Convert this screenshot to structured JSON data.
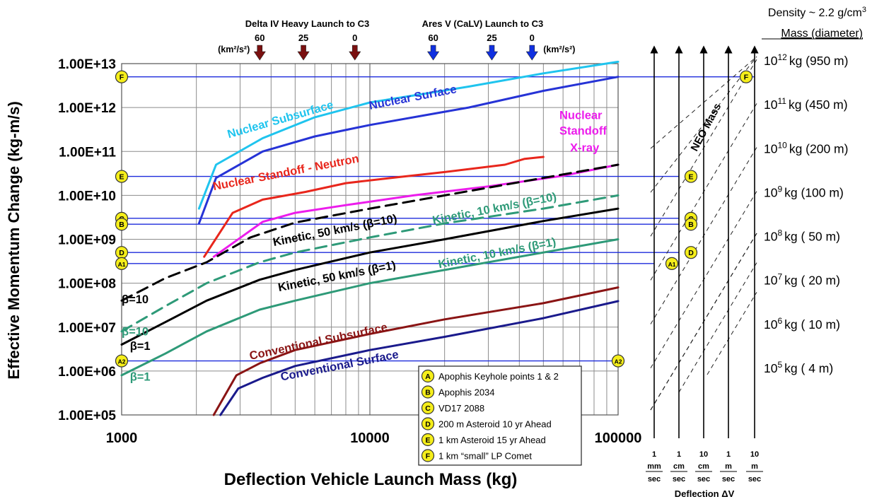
{
  "chart_data": {
    "type": "line",
    "xscale": "log",
    "yscale": "log",
    "xlim": [
      1000,
      100000
    ],
    "ylim": [
      100000,
      10000000000000
    ],
    "grid": true,
    "xlabel": "Deflection Vehicle Launch Mass (kg)",
    "ylabel": "Effective Momentum Change (kg-m/s)",
    "xticks": [
      {
        "v": 1000,
        "label": "1000"
      },
      {
        "v": 10000,
        "label": "10000"
      },
      {
        "v": 100000,
        "label": "100000"
      }
    ],
    "yticks": [
      {
        "v": 100000.0,
        "label": "1.00E+05"
      },
      {
        "v": 1000000.0,
        "label": "1.00E+06"
      },
      {
        "v": 10000000.0,
        "label": "1.00E+07"
      },
      {
        "v": 100000000.0,
        "label": "1.00E+08"
      },
      {
        "v": 1000000000.0,
        "label": "1.00E+09"
      },
      {
        "v": 10000000000.0,
        "label": "1.00E+10"
      },
      {
        "v": 100000000000.0,
        "label": "1.00E+11"
      },
      {
        "v": 1000000000000.0,
        "label": "1.00E+12"
      },
      {
        "v": 10000000000000.0,
        "label": "1.00E+13"
      }
    ],
    "series": [
      {
        "name": "Nuclear Subsurface",
        "color": "#1fc4ee",
        "dash": false,
        "x": [
          2050,
          2400,
          3700,
          6000,
          10000,
          25000,
          50000,
          100000
        ],
        "y": [
          5000000000.0,
          50000000000.0,
          200000000000.0,
          600000000000.0,
          1300000000000.0,
          3000000000000.0,
          6000000000000.0,
          11000000000000.0
        ]
      },
      {
        "name": "Nuclear Surface",
        "color": "#2633d6",
        "dash": false,
        "x": [
          2050,
          2400,
          3700,
          6000,
          10000,
          25000,
          50000,
          100000
        ],
        "y": [
          2300000000.0,
          25000000000.0,
          100000000000.0,
          220000000000.0,
          400000000000.0,
          1000000000000.0,
          2400000000000.0,
          5000000000000.0
        ]
      },
      {
        "name": "Nuclear Standoff - Neutron",
        "color": "#e8261c",
        "dash": false,
        "x": [
          2150,
          2800,
          3700,
          5500,
          8000,
          13000,
          20000,
          35000,
          42000,
          50000
        ],
        "y": [
          400000000.0,
          4000000000.0,
          8000000000.0,
          12000000000.0,
          19000000000.0,
          26000000000.0,
          34000000000.0,
          50000000000.0,
          68000000000.0,
          75000000000.0
        ]
      },
      {
        "name": "Nuclear Standoff X-ray",
        "color": "#ec1cec",
        "dash": false,
        "x": [
          2350,
          3700,
          5000,
          8000,
          15000,
          30000,
          60000,
          100000
        ],
        "y": [
          400000000.0,
          2500000000.0,
          4000000000.0,
          6000000000.0,
          10000000000.0,
          16000000000.0,
          28000000000.0,
          50000000000.0
        ]
      },
      {
        "name": "Kinetic, 50 km/s (β=10)",
        "color": "#000000",
        "dash": true,
        "x": [
          1000,
          1500,
          2200,
          3300,
          5000,
          10000,
          20000,
          50000,
          100000
        ],
        "y": [
          40000000.0,
          130000000.0,
          300000000.0,
          1100000000.0,
          2400000000.0,
          5000000000.0,
          10000000000.0,
          25000000000.0,
          50000000000.0
        ]
      },
      {
        "name": "Kinetic, 10 km/s (β=10)",
        "color": "#2e9a78",
        "dash": true,
        "x": [
          1000,
          1500,
          2200,
          3600,
          5000,
          10000,
          20000,
          50000,
          100000
        ],
        "y": [
          8000000.0,
          30000000.0,
          100000000.0,
          300000000.0,
          500000000.0,
          1100000000.0,
          2300000000.0,
          5000000000.0,
          10000000000.0
        ]
      },
      {
        "name": "Kinetic, 50 km/s (β=1)",
        "color": "#000000",
        "dash": false,
        "x": [
          1000,
          1500,
          2200,
          3600,
          5000,
          10000,
          20000,
          50000,
          100000
        ],
        "y": [
          4000000.0,
          13000000.0,
          40000000.0,
          120000000.0,
          200000000.0,
          500000000.0,
          1000000000.0,
          2600000000.0,
          5000000000.0
        ]
      },
      {
        "name": "Kinetic, 10 km/s (β=1)",
        "color": "#2e9a78",
        "dash": false,
        "x": [
          1000,
          1500,
          2200,
          3600,
          5000,
          10000,
          20000,
          50000,
          100000
        ],
        "y": [
          800000.0,
          2500000.0,
          8000000.0,
          25000000.0,
          40000000.0,
          100000000.0,
          200000000.0,
          500000000.0,
          1000000000.0
        ]
      },
      {
        "name": "Conventional Subsurface",
        "color": "#8a1414",
        "dash": false,
        "x": [
          2350,
          2900,
          3600,
          5000,
          10000,
          20000,
          50000,
          100000
        ],
        "y": [
          100000.0,
          800000.0,
          1500000.0,
          3000000.0,
          7000000.0,
          15000000.0,
          35000000.0,
          80000000.0
        ]
      },
      {
        "name": "Conventional Surface",
        "color": "#1a1a8c",
        "dash": false,
        "x": [
          2500,
          2950,
          3700,
          5000,
          10000,
          20000,
          50000,
          100000
        ],
        "y": [
          100000.0,
          400000.0,
          700000.0,
          1300000.0,
          3000000.0,
          6000000.0,
          16000000.0,
          39000000.0
        ]
      }
    ],
    "curve_labels": [
      {
        "text": "Nuclear Subsurface",
        "color": "#1fc4ee",
        "x": 2700,
        "y": 200000000000.0,
        "rot": -16
      },
      {
        "text": "Nuclear Surface",
        "color": "#2633d6",
        "x": 10000,
        "y": 900000000000.0,
        "rot": -11
      },
      {
        "text": "Nuclear Standoff - Neutron",
        "color": "#e8261c",
        "x": 2350,
        "y": 13000000000.0,
        "rot": -11
      },
      {
        "text": "Nuclear",
        "color": "#ec1cec",
        "x": 58000,
        "y": 550000000000.0,
        "rot": 0
      },
      {
        "text": "Standoff",
        "color": "#ec1cec",
        "x": 58000,
        "y": 240000000000.0,
        "rot": 0
      },
      {
        "text": "X-ray",
        "color": "#ec1cec",
        "x": 64000,
        "y": 100000000000.0,
        "rot": 0
      },
      {
        "text": "Kinetic, 50 km/s (β=10)",
        "color": "#000000",
        "x": 4100,
        "y": 700000000.0,
        "rot": -11
      },
      {
        "text": "Kinetic, 10 km/s (β=10)",
        "color": "#2e9a78",
        "x": 18000,
        "y": 2200000000.0,
        "rot": -11
      },
      {
        "text": "Kinetic, 50 km/s (β=1)",
        "color": "#000000",
        "x": 4300,
        "y": 65000000.0,
        "rot": -11
      },
      {
        "text": "Kinetic, 10 km/s (β=1)",
        "color": "#2e9a78",
        "x": 19000,
        "y": 220000000.0,
        "rot": -11
      },
      {
        "text": "Conventional Subsurface",
        "color": "#8a1414",
        "x": 3300,
        "y": 1800000.0,
        "rot": -12
      },
      {
        "text": "Conventional Surface",
        "color": "#1a1a8c",
        "x": 4400,
        "y": 600000.0,
        "rot": -11
      },
      {
        "text": "β=10",
        "color": "#000000",
        "x": 1000,
        "y": 35000000.0,
        "rot": 0
      },
      {
        "text": "β=10",
        "color": "#2e9a78",
        "x": 1000,
        "y": 6500000.0,
        "rot": 0
      },
      {
        "text": "β=1",
        "color": "#000000",
        "x": 1080,
        "y": 3000000.0,
        "rot": 0
      },
      {
        "text": "β=1",
        "color": "#2e9a78",
        "x": 1080,
        "y": 600000.0,
        "rot": 0
      }
    ],
    "reference_lines": [
      {
        "key": "F",
        "y": 5000000000000.0
      },
      {
        "key": "E",
        "y": 27000000000.0
      },
      {
        "key": "C",
        "y": 3000000000.0
      },
      {
        "key": "B",
        "y": 2200000000.0
      },
      {
        "key": "D",
        "y": 500000000.0
      },
      {
        "key": "A1",
        "y": 280000000.0
      },
      {
        "key": "A2",
        "y": 1700000.0
      }
    ],
    "c3_markers": {
      "delta_iv": {
        "title": "Delta IV Heavy Launch to C3",
        "unit": "(km²/s²)",
        "color": "#7a1010",
        "points": [
          {
            "c3": "60",
            "x": 3600
          },
          {
            "c3": "25",
            "x": 5400
          },
          {
            "c3": "0",
            "x": 8700
          }
        ]
      },
      "ares_v": {
        "title": "Ares V (CaLV) Launch to C3",
        "unit": "(km²/s²)",
        "color": "#1030e0",
        "points": [
          {
            "c3": "60",
            "x": 18000
          },
          {
            "c3": "25",
            "x": 31000
          },
          {
            "c3": "0",
            "x": 45000
          }
        ]
      }
    },
    "legend": {
      "placement": "bottom-right",
      "items": [
        {
          "key": "A",
          "text": "Apophis Keyhole points 1 & 2"
        },
        {
          "key": "B",
          "text": "Apophis 2034"
        },
        {
          "key": "C",
          "text": "VD17 2088"
        },
        {
          "key": "D",
          "text": "200 m Asteroid 10 yr Ahead"
        },
        {
          "key": "E",
          "text": "1 km Asteroid 15 yr Ahead"
        },
        {
          "key": "F",
          "text": "1 km “small” LP Comet"
        }
      ]
    },
    "right_panel": {
      "density": {
        "text": "Density ~ 2.2 g/cm",
        "sup": "3"
      },
      "mass_header": "Mass (diameter)",
      "neo_label": "NEO Mass",
      "mass_rows": [
        {
          "exp": "12",
          "rest": "kg (950 m)",
          "y": 10000000000000.0
        },
        {
          "exp": "11",
          "rest": "kg (450 m)",
          "y": 1000000000000.0
        },
        {
          "exp": "10",
          "rest": "kg (200 m)",
          "y": 100000000000.0
        },
        {
          "exp": "9",
          "rest": "kg (100 m)",
          "y": 10000000000.0
        },
        {
          "exp": "8",
          "rest": "kg (  50 m)",
          "y": 1000000000.0
        },
        {
          "exp": "7",
          "rest": "kg (  20 m)",
          "y": 100000000.0
        },
        {
          "exp": "6",
          "rest": "kg (  10 m)",
          "y": 10000000.0
        },
        {
          "exp": "5",
          "rest": "kg (   4 m)",
          "y": 1000000.0
        }
      ],
      "dv_axes": [
        {
          "num": "1",
          "unit": "mm",
          "den": "sec"
        },
        {
          "num": "1",
          "unit": "cm",
          "den": "sec"
        },
        {
          "num": "10",
          "unit": "cm",
          "den": "sec"
        },
        {
          "num": "1",
          "unit": "m",
          "den": "sec"
        },
        {
          "num": "10",
          "unit": "m",
          "den": "sec"
        }
      ],
      "dv_title": "Deflection ΔV",
      "ref_markers": [
        {
          "key": "F",
          "axis": 4,
          "y": 5000000000000.0
        },
        {
          "key": "E",
          "axis": 1,
          "y": 27000000000.0
        },
        {
          "key": "C",
          "axis": 1,
          "y": 3000000000.0
        },
        {
          "key": "B",
          "axis": 1,
          "y": 2200000000.0
        },
        {
          "key": "D",
          "axis": 1,
          "y": 500000000.0
        },
        {
          "key": "A1",
          "axis": 0,
          "y": 280000000.0
        }
      ]
    }
  }
}
